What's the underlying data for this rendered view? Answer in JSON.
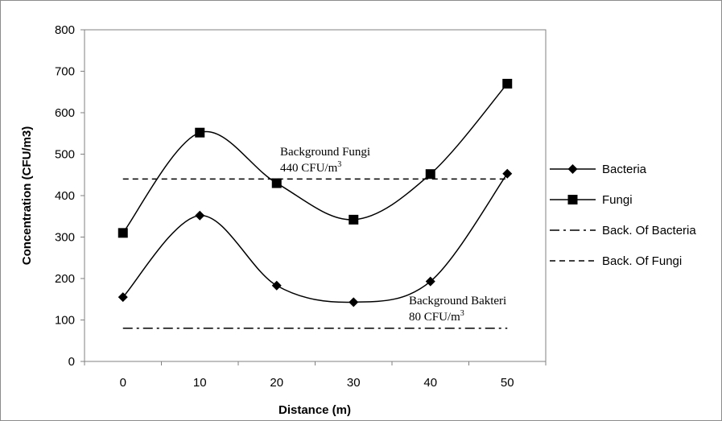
{
  "chart_data": {
    "type": "line",
    "x": [
      0,
      10,
      20,
      30,
      40,
      50
    ],
    "categories": [
      "0",
      "10",
      "20",
      "30",
      "40",
      "50"
    ],
    "series": [
      {
        "name": "Bacteria",
        "values": [
          155,
          352,
          183,
          143,
          193,
          453
        ],
        "marker": "diamond",
        "line": "solid"
      },
      {
        "name": "Fungi",
        "values": [
          310,
          552,
          430,
          342,
          452,
          670
        ],
        "marker": "square",
        "line": "solid"
      },
      {
        "name": "Back. Of Bacteria",
        "values": [
          80,
          80,
          80,
          80,
          80,
          80
        ],
        "marker": "none",
        "line": "dash-dot"
      },
      {
        "name": "Back. Of Fungi",
        "values": [
          440,
          440,
          440,
          440,
          440,
          440
        ],
        "marker": "none",
        "line": "dashed"
      }
    ],
    "xlabel": "Distance (m)",
    "ylabel": "Concentration (CFU/m3)",
    "ylim": [
      0,
      800
    ],
    "yticks": [
      "0",
      "100",
      "200",
      "300",
      "400",
      "500",
      "600",
      "700",
      "800"
    ],
    "legend_position": "right",
    "grid": false,
    "annotations": [
      {
        "line1": "Background Fungi",
        "line2_prefix": "440 CFU/m",
        "line2_sup": "3"
      },
      {
        "line1": "Background Bakteri",
        "line2_prefix": "80 CFU/m",
        "line2_sup": "3"
      }
    ]
  },
  "colors": {
    "series": "#000000",
    "frame": "#8c8c8c",
    "axis": "#808080"
  }
}
